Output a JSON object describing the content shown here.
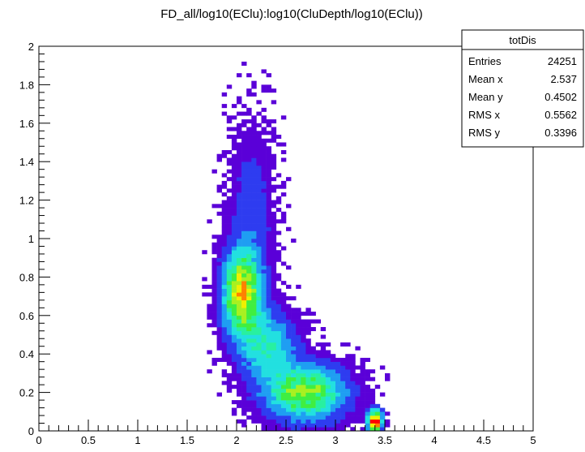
{
  "chart_data": {
    "type": "heatmap",
    "title": "FD_all/log10(EClu):log10(CluDepth/log10(EClu))",
    "xlabel": "",
    "ylabel": "",
    "xlim": [
      0,
      5
    ],
    "ylim": [
      0,
      2
    ],
    "x_ticks": [
      "0",
      "0.5",
      "1",
      "1.5",
      "2",
      "2.5",
      "3",
      "3.5",
      "4",
      "4.5",
      "5"
    ],
    "y_ticks": [
      "0",
      "0.2",
      "0.4",
      "0.6",
      "0.8",
      "1",
      "1.2",
      "1.4",
      "1.6",
      "1.8",
      "2"
    ],
    "grid": false,
    "palette": [
      "#5a00d8",
      "#2e3cf0",
      "#1f9ef2",
      "#22e0e0",
      "#28f0a0",
      "#40ee40",
      "#a8f020",
      "#f0f000",
      "#ff8000",
      "#ff0000"
    ],
    "clusters": [
      {
        "x": 2.05,
        "y": 0.72,
        "sx": 0.13,
        "sy": 0.14,
        "peak": 7.5
      },
      {
        "x": 2.7,
        "y": 0.2,
        "sx": 0.28,
        "sy": 0.1,
        "peak": 6.2
      },
      {
        "x": 2.3,
        "y": 0.45,
        "sx": 0.2,
        "sy": 0.12,
        "peak": 3.8
      },
      {
        "x": 2.15,
        "y": 1.15,
        "sx": 0.16,
        "sy": 0.3,
        "peak": 1.6
      },
      {
        "x": 3.4,
        "y": 0.05,
        "sx": 0.05,
        "sy": 0.04,
        "peak": 10
      }
    ],
    "stats": {
      "name": "totDis",
      "rows": [
        {
          "label": "Entries",
          "value": "24251"
        },
        {
          "label": "Mean x",
          "value": "2.537"
        },
        {
          "label": "Mean y",
          "value": "0.4502"
        },
        {
          "label": "RMS x",
          "value": "0.5562"
        },
        {
          "label": "RMS y",
          "value": "0.3396"
        }
      ]
    }
  }
}
